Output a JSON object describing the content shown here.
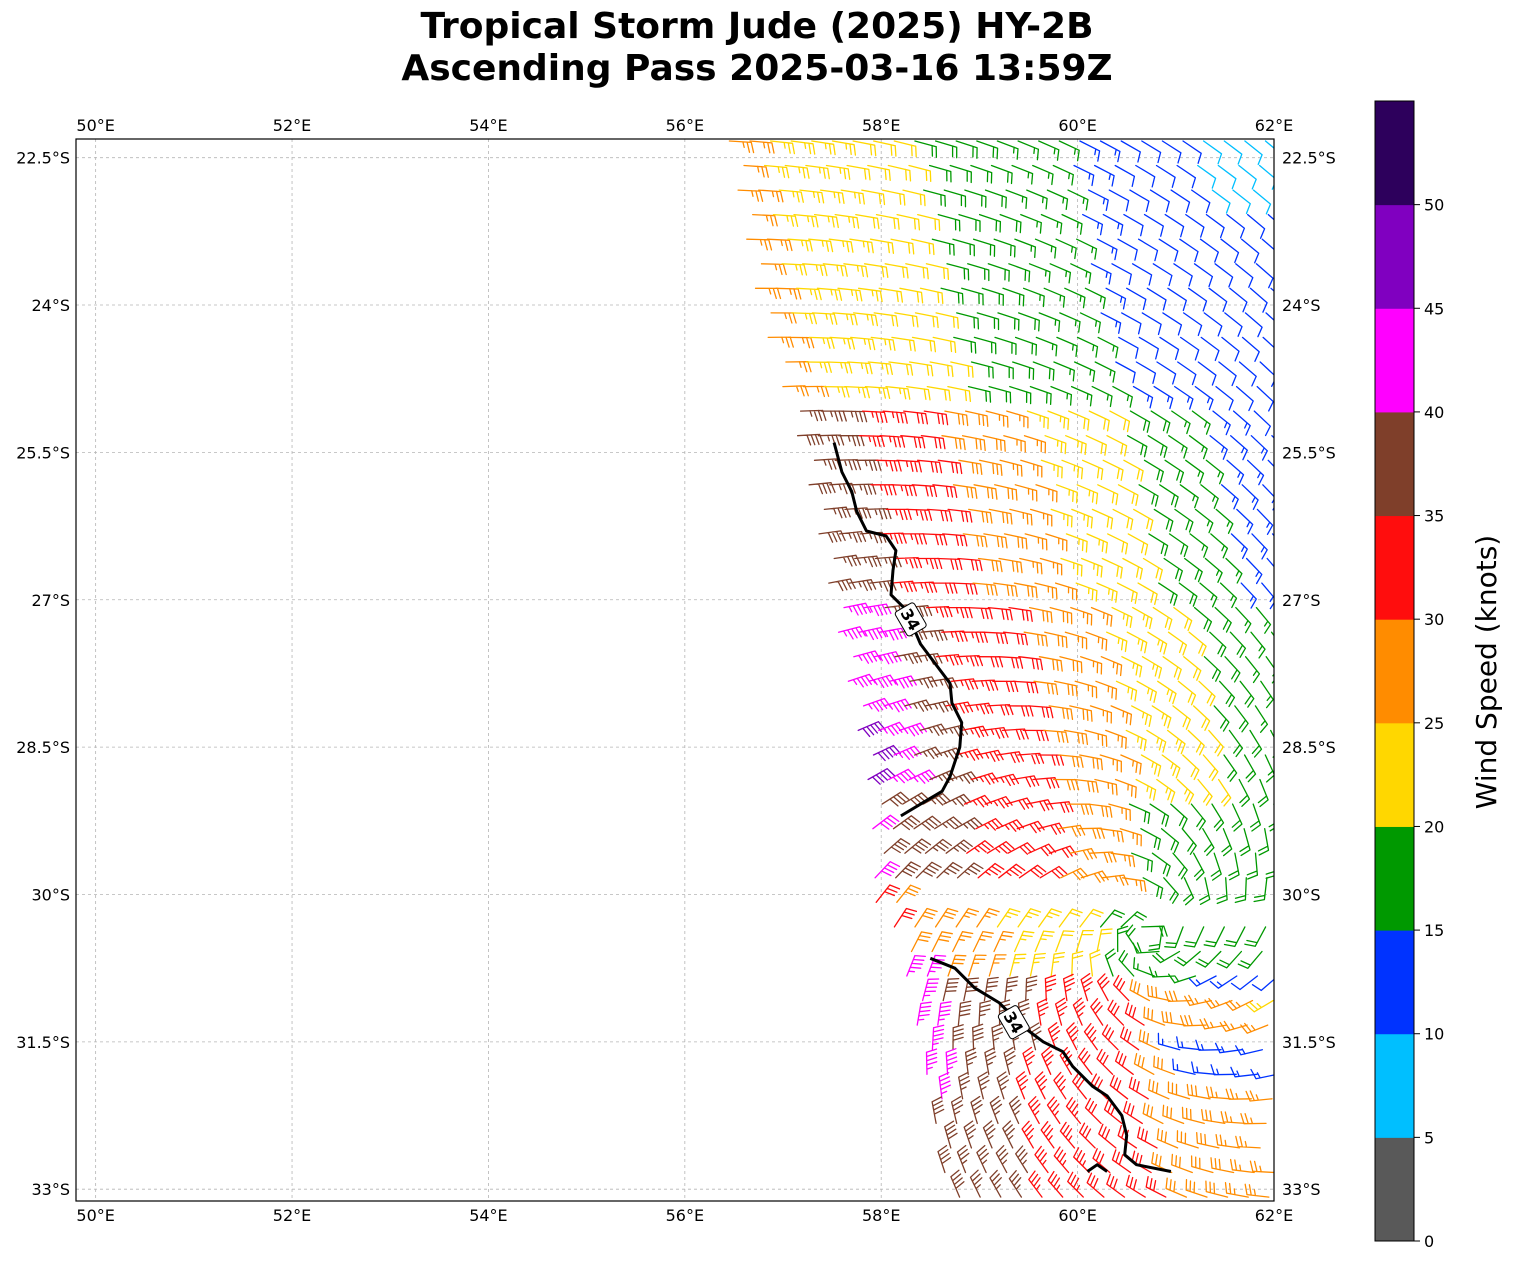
{
  "title_line1": "Tropical Storm Jude (2025) HY-2B",
  "title_line2": "Ascending Pass 2025-03-16 13:59Z",
  "map": {
    "lon_min": 49.8,
    "lon_max": 62.0,
    "lat_min": -33.12,
    "lat_max": -22.31,
    "lon_ticks": [
      50,
      52,
      54,
      56,
      58,
      60,
      62
    ],
    "lon_tick_labels": [
      "50°E",
      "52°E",
      "54°E",
      "56°E",
      "58°E",
      "60°E",
      "62°E"
    ],
    "lat_ticks": [
      -22.5,
      -24,
      -25.5,
      -27,
      -28.5,
      -30,
      -31.5,
      -33
    ],
    "lat_tick_labels": [
      "22.5°S",
      "24°S",
      "25.5°S",
      "27°S",
      "28.5°S",
      "30°S",
      "31.5°S",
      "33°S"
    ],
    "gridlines": true
  },
  "colorbar": {
    "label": "Wind Speed (knots)",
    "ticks": [
      "0",
      "5",
      "10",
      "15",
      "20",
      "25",
      "30",
      "35",
      "40",
      "45",
      "50"
    ],
    "max": 55,
    "colors": [
      "#595959",
      "#00bfff",
      "#0033ff",
      "#009900",
      "#ffd700",
      "#ff8c00",
      "#ff0d0d",
      "#7f3f2a",
      "#ff00ff",
      "#8000c0",
      "#2d005c"
    ]
  },
  "contours": [
    {
      "label": "34",
      "label_at": [
        58.3,
        -27.2
      ],
      "points": [
        [
          57.52,
          -25.4
        ],
        [
          57.6,
          -25.7
        ],
        [
          57.7,
          -25.9
        ],
        [
          57.75,
          -26.1
        ],
        [
          57.85,
          -26.3
        ],
        [
          58.05,
          -26.35
        ],
        [
          58.15,
          -26.5
        ],
        [
          58.12,
          -26.7
        ],
        [
          58.1,
          -26.95
        ],
        [
          58.25,
          -27.1
        ],
        [
          58.4,
          -27.45
        ],
        [
          58.55,
          -27.65
        ],
        [
          58.7,
          -27.85
        ],
        [
          58.72,
          -28.05
        ],
        [
          58.82,
          -28.25
        ],
        [
          58.8,
          -28.5
        ],
        [
          58.7,
          -28.8
        ],
        [
          58.62,
          -28.95
        ],
        [
          58.45,
          -29.05
        ],
        [
          58.2,
          -29.2
        ]
      ]
    },
    {
      "label": "34",
      "label_at": [
        59.35,
        -31.3
      ],
      "points": [
        [
          58.5,
          -30.65
        ],
        [
          58.75,
          -30.75
        ],
        [
          58.95,
          -30.95
        ],
        [
          59.2,
          -31.1
        ],
        [
          59.45,
          -31.35
        ],
        [
          59.65,
          -31.5
        ],
        [
          59.85,
          -31.6
        ],
        [
          59.95,
          -31.75
        ],
        [
          60.15,
          -31.95
        ],
        [
          60.3,
          -32.05
        ],
        [
          60.45,
          -32.25
        ],
        [
          60.5,
          -32.45
        ],
        [
          60.48,
          -32.65
        ],
        [
          60.6,
          -32.75
        ],
        [
          60.95,
          -32.82
        ]
      ]
    },
    {
      "label": "",
      "points": [
        [
          60.1,
          -32.82
        ],
        [
          60.2,
          -32.75
        ],
        [
          60.3,
          -32.82
        ]
      ]
    }
  ],
  "wind_barbs": {
    "swath_left_edge": [
      [
        56.45,
        -22.31
      ],
      [
        56.75,
        -24.0
      ],
      [
        57.2,
        -25.5
      ],
      [
        57.5,
        -27.0
      ],
      [
        57.9,
        -29.0
      ],
      [
        57.95,
        -30.1
      ],
      [
        58.15,
        -30.35
      ],
      [
        58.3,
        -31.0
      ],
      [
        58.5,
        -32.0
      ],
      [
        58.7,
        -33.12
      ]
    ],
    "gap_rows": [
      29.85,
      30.25
    ],
    "center_lon": 60.7,
    "center_lat": -30.4
  }
}
